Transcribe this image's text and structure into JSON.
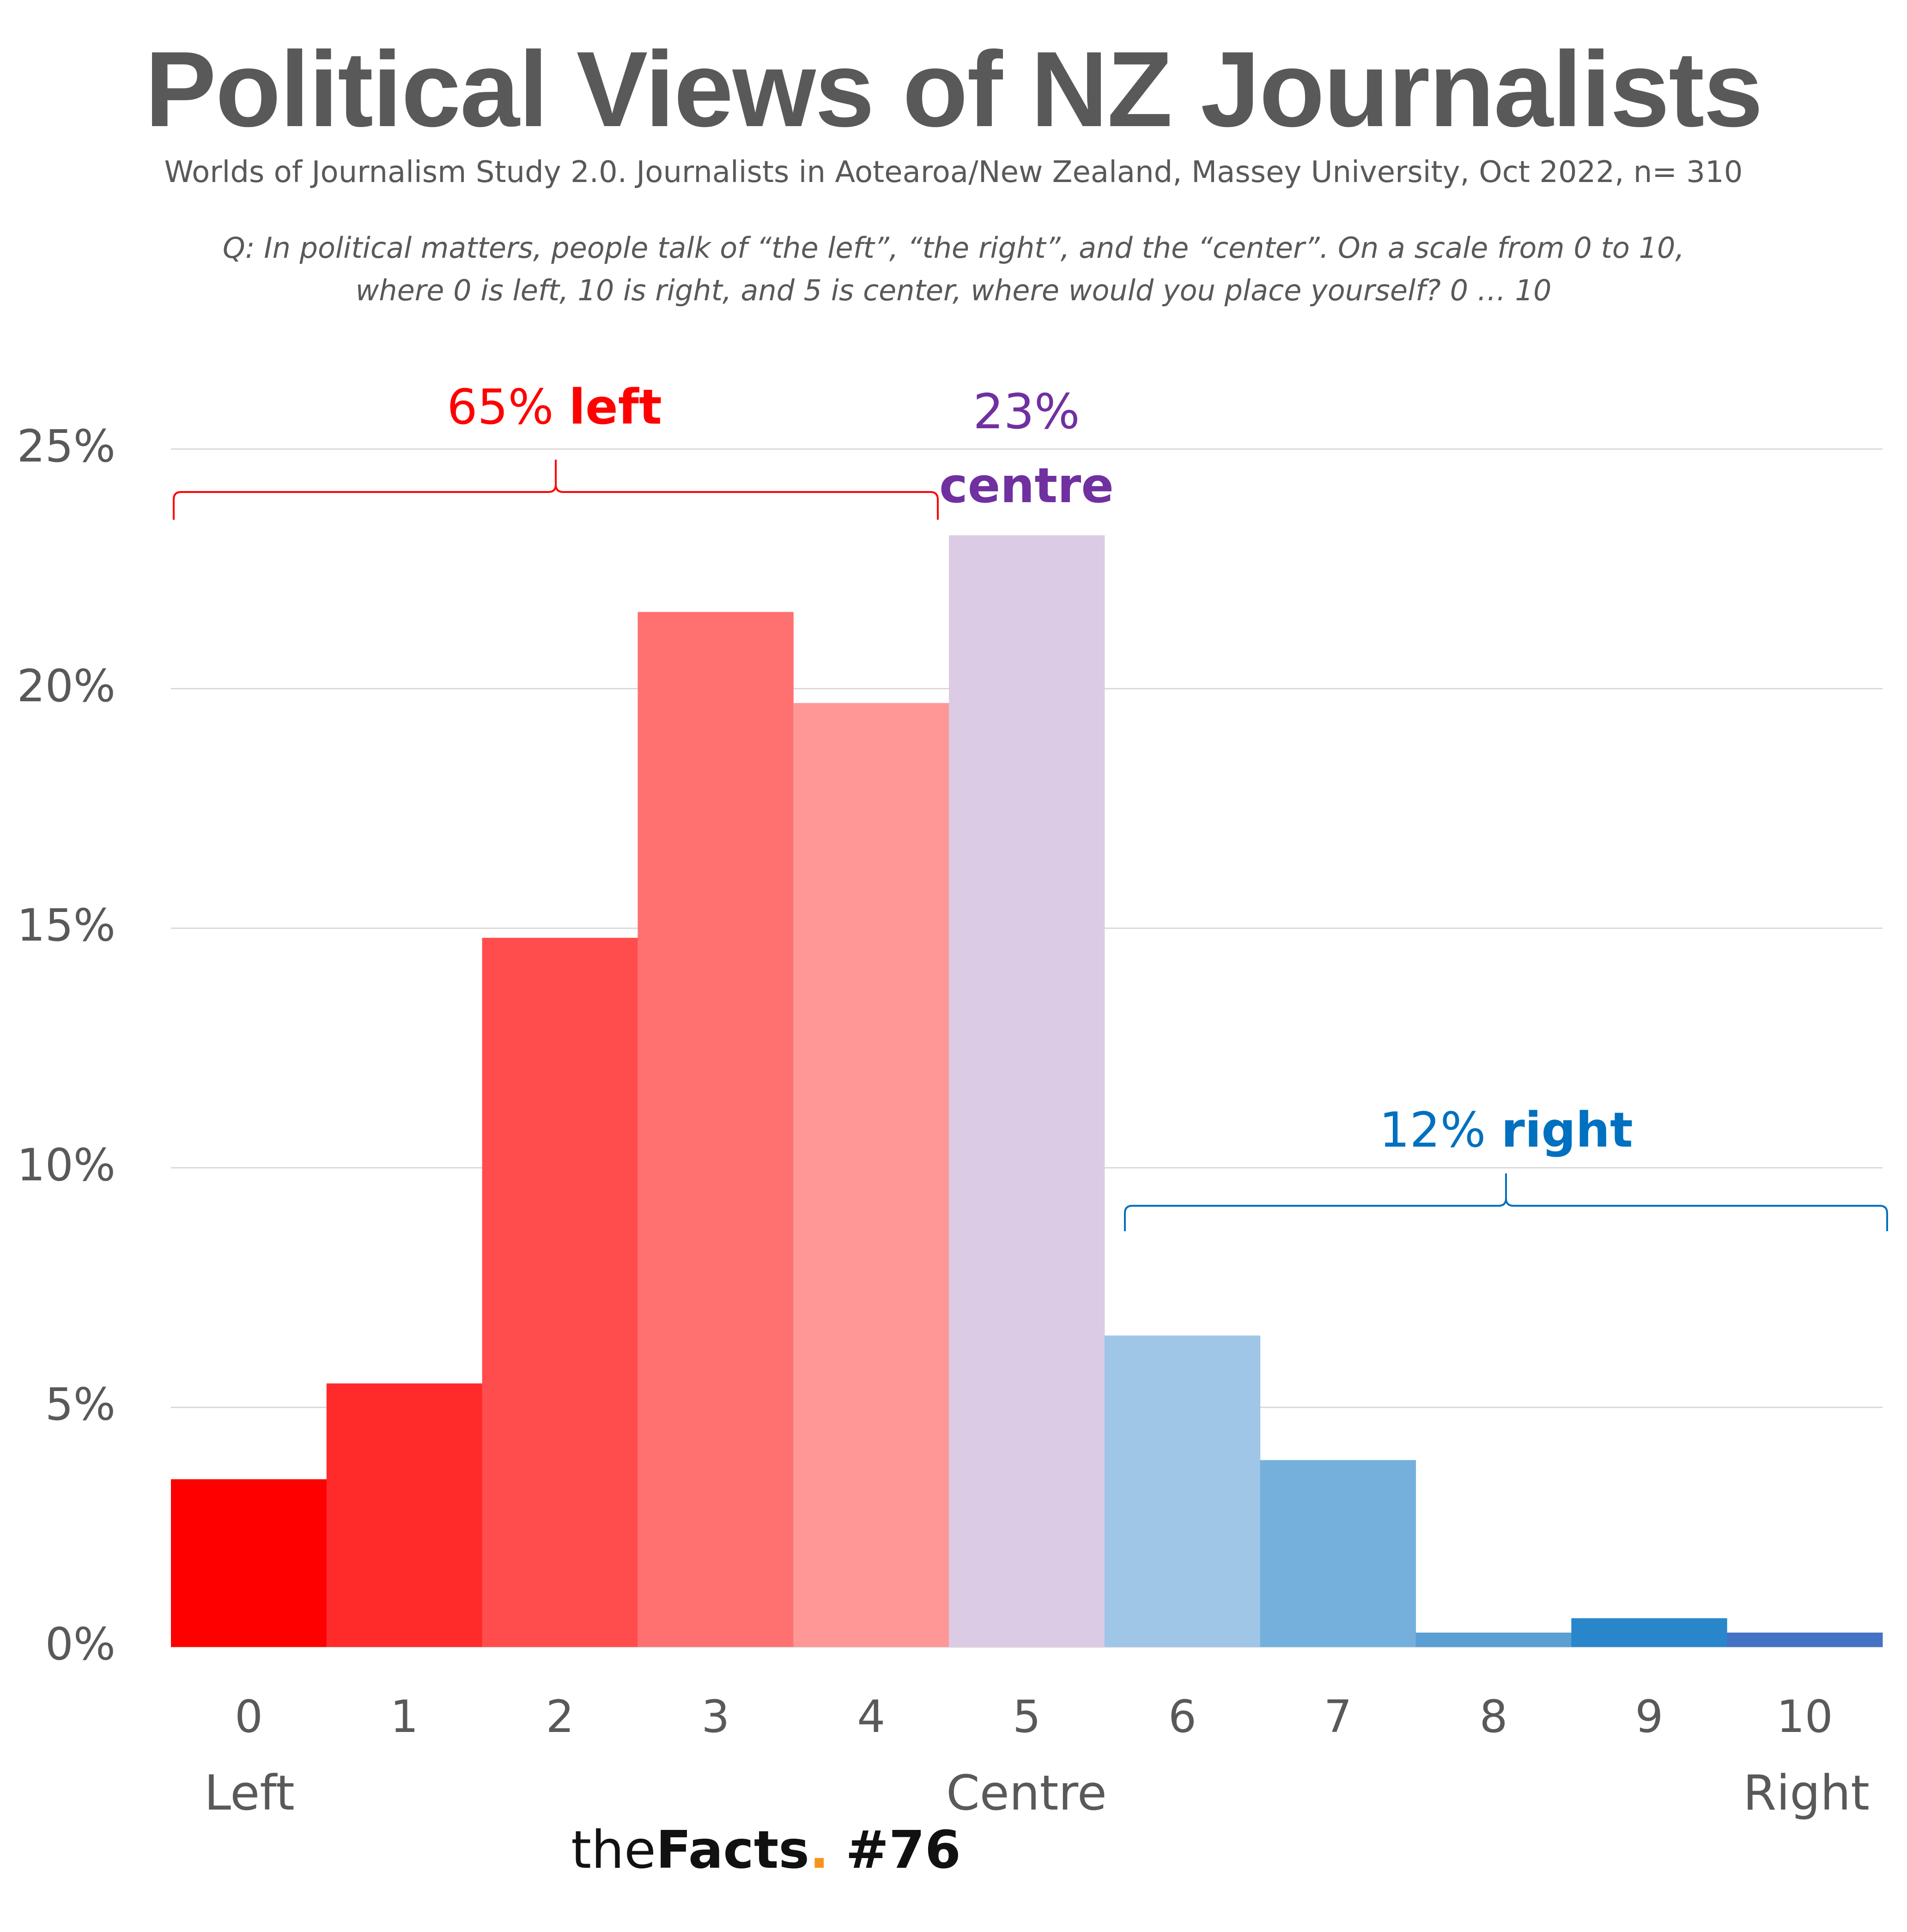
{
  "colors": {
    "left_brace": "#ff0000",
    "centre_text": "#7030a0",
    "right_brace": "#0070c0",
    "grid": "#d9d9d9",
    "text": "#595959",
    "brand_dot": "#f7941d"
  },
  "chart_data": {
    "type": "bar",
    "title": "Political Views of NZ Journalists",
    "subtitle": "Worlds of Journalism Study 2.0. Journalists in Aotearoa/New Zealand, Massey University, Oct 2022, n= 310",
    "question_line1": "Q: In political matters, people talk of “the left”, “the right”, and the “center”. On a scale from 0 to 10,",
    "question_line2": "where 0 is left, 10 is right, and 5 is center, where would you place yourself? 0 … 10",
    "categories": [
      "0",
      "1",
      "2",
      "3",
      "4",
      "5",
      "6",
      "7",
      "8",
      "9",
      "10"
    ],
    "category_sublabels": {
      "left": "Left",
      "centre": "Centre",
      "right": "Right"
    },
    "values": [
      3.5,
      5.5,
      14.8,
      21.6,
      19.7,
      23.2,
      6.5,
      3.9,
      0.3,
      0.6,
      0.3
    ],
    "bar_colors": [
      "#ff0000",
      "#ff2b2b",
      "#ff4d4d",
      "#ff7171",
      "#ff9797",
      "#dccbe5",
      "#9fc6e7",
      "#74b0db",
      "#5a9fd4",
      "#2a86cb",
      "#4472c4"
    ],
    "ylim": [
      0,
      25
    ],
    "yticks": [
      "0%",
      "5%",
      "10%",
      "15%",
      "20%",
      "25%"
    ],
    "grid": true,
    "annotations": {
      "left_pct": "65%",
      "left_word": "left",
      "centre_pct": "23%",
      "centre_word": "centre",
      "right_pct": "12%",
      "right_word": "right"
    }
  },
  "footer": {
    "the": "the",
    "facts": "Facts",
    "dot": ".",
    "number": "#76"
  }
}
